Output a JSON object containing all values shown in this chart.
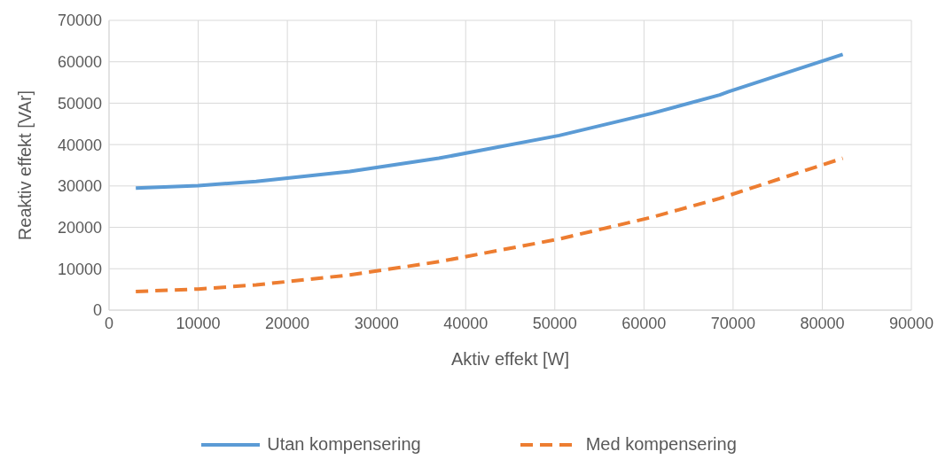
{
  "chart_data": {
    "type": "line",
    "xlabel": "Aktiv effekt [W]",
    "ylabel": "Reaktiv effekt [VAr]",
    "xlim": [
      0,
      90000
    ],
    "xticks": [
      0,
      10000,
      20000,
      30000,
      40000,
      50000,
      60000,
      70000,
      80000,
      90000
    ],
    "ylim": [
      0,
      70000
    ],
    "yticks": [
      0,
      10000,
      20000,
      30000,
      40000,
      50000,
      60000,
      70000
    ],
    "grid": true,
    "legend": "bottom",
    "marker": "none",
    "series": [
      {
        "name": "Utan kompensering",
        "color": "#5b9bd5",
        "line_style": "solid",
        "x": [
          3000,
          10000,
          16500,
          27000,
          37000,
          50500,
          61000,
          68500,
          69500,
          82300
        ],
        "values": [
          29500,
          30100,
          31100,
          33500,
          36700,
          42200,
          47600,
          52000,
          52800,
          61800
        ]
      },
      {
        "name": "Med kompensering",
        "color": "#ed7d31",
        "line_style": "dashed",
        "x": [
          3000,
          10000,
          16500,
          27000,
          37000,
          50500,
          61000,
          68500,
          82300
        ],
        "values": [
          4500,
          5100,
          6100,
          8500,
          11700,
          17200,
          22500,
          27000,
          36700
        ]
      }
    ]
  }
}
